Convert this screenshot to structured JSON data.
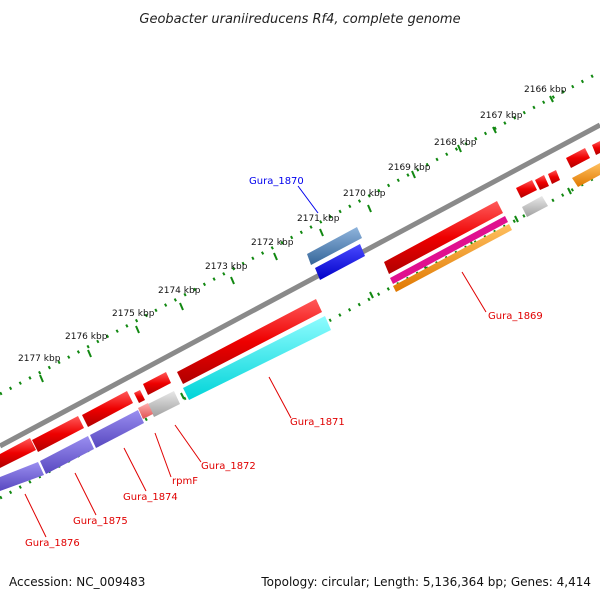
{
  "title": "Geobacter uraniireducens Rf4, complete genome",
  "footer": {
    "accession": "Accession: NC_009483",
    "topology": "Topology: circular; Length: 5,136,364 bp; Genes: 4,414"
  },
  "ticks": [
    "2166 kbp",
    "2167 kbp",
    "2168 kbp",
    "2169 kbp",
    "2170 kbp",
    "2171 kbp",
    "2172 kbp",
    "2173 kbp",
    "2174 kbp",
    "2175 kbp",
    "2176 kbp",
    "2177 kbp"
  ],
  "gene_labels": [
    {
      "key": "gura_1870",
      "text": "Gura_1870",
      "color": "#0000ee"
    },
    {
      "key": "gura_1869",
      "text": "Gura_1869",
      "color": "#e00000"
    },
    {
      "key": "gura_1871",
      "text": "Gura_1871",
      "color": "#e00000"
    },
    {
      "key": "gura_1872",
      "text": "Gura_1872",
      "color": "#e00000"
    },
    {
      "key": "rpmf",
      "text": "rpmF",
      "color": "#e00000"
    },
    {
      "key": "gura_1874",
      "text": "Gura_1874",
      "color": "#e00000"
    },
    {
      "key": "gura_1875",
      "text": "Gura_1875",
      "color": "#e00000"
    },
    {
      "key": "gura_1876",
      "text": "Gura_1876",
      "color": "#e00000"
    }
  ],
  "colors": {
    "backbone": "#808080",
    "cds_forward": "#ee0000",
    "cds_reverse": "#ee0000",
    "gene_blue": "#0000ee",
    "gene_steelblue": "#4a7fb5",
    "gene_cyan": "#00eeee",
    "gene_purple": "#6a5acd",
    "gene_magenta": "#e0108f",
    "gene_orange": "#f08a00",
    "gene_gray": "#b0b0b0",
    "gene_pink": "#f07070",
    "tick_dots": "#118811"
  }
}
